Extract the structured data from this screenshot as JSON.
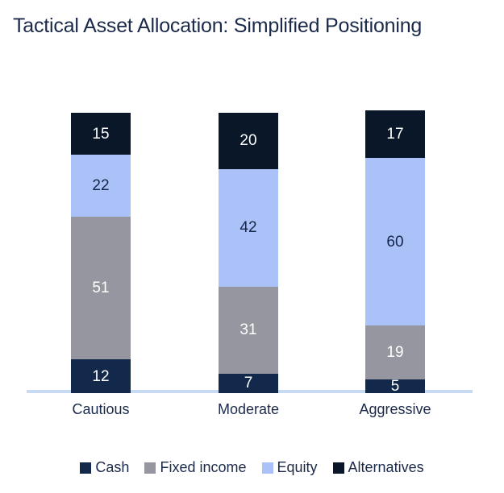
{
  "title": "Tactical Asset Allocation: Simplified Positioning",
  "chart_data": {
    "type": "bar",
    "stacked": true,
    "title": "Tactical Asset Allocation: Simplified Positioning",
    "categories": [
      "Cautious",
      "Moderate",
      "Aggressive"
    ],
    "series": [
      {
        "name": "Cash",
        "color": "#12294b",
        "label_color": "#ffffff",
        "values": [
          12,
          7,
          5
        ]
      },
      {
        "name": "Fixed income",
        "color": "#95969f",
        "label_color": "#ffffff",
        "values": [
          51,
          31,
          19
        ]
      },
      {
        "name": "Equity",
        "color": "#abc2f8",
        "label_color": "#16264a",
        "values": [
          22,
          42,
          60
        ]
      },
      {
        "name": "Alternatives",
        "color": "#0a1728",
        "label_color": "#ffffff",
        "values": [
          15,
          20,
          17
        ]
      }
    ],
    "value_labels": true,
    "legend_position": "bottom",
    "grid": false,
    "y_axis_visible": false,
    "x_axis_line_color": "#c7daf2",
    "text_color": "#1b2a4a",
    "ylim": [
      0,
      100
    ]
  }
}
